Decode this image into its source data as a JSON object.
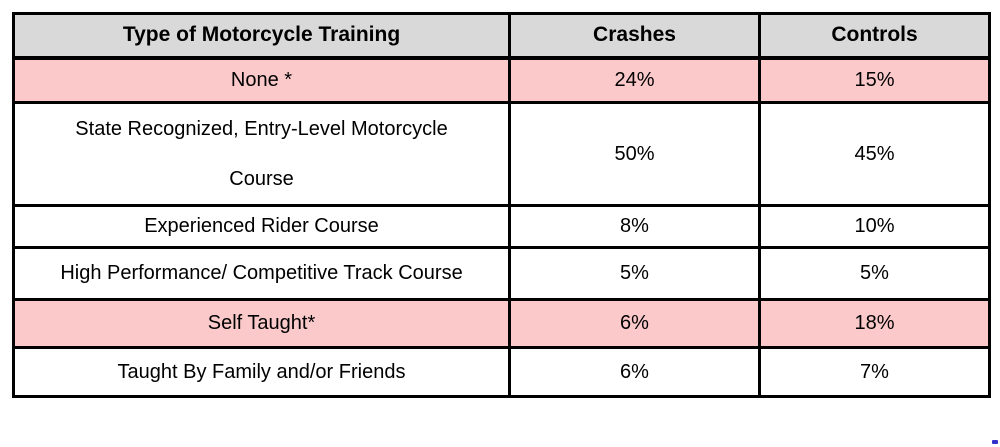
{
  "chart_data": {
    "type": "table",
    "title": "",
    "columns": [
      "Type of Motorcycle Training",
      "Crashes",
      "Controls"
    ],
    "rows": [
      {
        "training": "None *",
        "crashes": "24%",
        "controls": "15%",
        "highlighted": true
      },
      {
        "training": "State Recognized, Entry-Level Motorcycle Course",
        "crashes": "50%",
        "controls": "45%",
        "highlighted": false
      },
      {
        "training": "Experienced Rider Course",
        "crashes": "8%",
        "controls": "10%",
        "highlighted": false
      },
      {
        "training": "High Performance/ Competitive Track Course",
        "crashes": "5%",
        "controls": "5%",
        "highlighted": false
      },
      {
        "training": "Self Taught*",
        "crashes": "6%",
        "controls": "18%",
        "highlighted": true
      },
      {
        "training": "Taught By Family and/or Friends",
        "crashes": "6%",
        "controls": "7%",
        "highlighted": false
      }
    ]
  },
  "colors": {
    "header_bg": "#d9d9d9",
    "highlight_bg": "#fbc9ca",
    "border": "#000000",
    "text": "#000000",
    "stray_mark": "#3333cc"
  }
}
